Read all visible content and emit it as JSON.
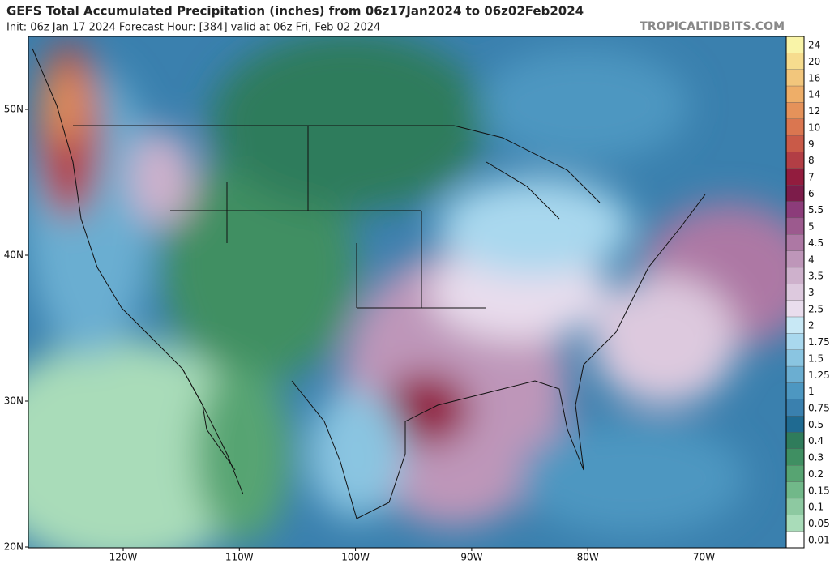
{
  "header": {
    "title": "GEFS Total Accumulated Precipitation (inches) from 06z17Jan2024 to 06z02Feb2024",
    "subtitle": "Init: 06z Jan 17 2024   Forecast Hour: [384]   valid at 06z Fri, Feb 02 2024",
    "credit": "TROPICALTIDBITS.COM"
  },
  "map": {
    "lat_labels": [
      "50N",
      "40N",
      "30N",
      "20N"
    ],
    "lon_labels": [
      "120W",
      "110W",
      "100W",
      "90W",
      "80W",
      "70W"
    ]
  },
  "colorbar": {
    "levels": [
      24,
      20,
      16,
      14,
      12,
      10,
      9,
      8,
      7,
      6,
      5.5,
      5,
      4.5,
      4,
      3.5,
      3,
      2.5,
      2,
      1.75,
      1.5,
      1.25,
      1,
      0.75,
      0.5,
      0.4,
      0.3,
      0.2,
      0.15,
      0.1,
      0.05,
      0.01
    ],
    "colors": [
      "#f9f4a8",
      "#f6dc8e",
      "#f2c67c",
      "#eeae68",
      "#e5925a",
      "#da7650",
      "#c95a48",
      "#b23e45",
      "#921c3e",
      "#7c1c4a",
      "#8c3c7a",
      "#9c5a8e",
      "#ad78a4",
      "#be96b9",
      "#ceb1cc",
      "#ddc9de",
      "#e9dded",
      "#c8e8f5",
      "#a9d8ee",
      "#8ac5e1",
      "#6baed1",
      "#4d97c1",
      "#3a80ae",
      "#1f6a91",
      "#2f7c5b",
      "#3f8f62",
      "#57a472",
      "#71b889",
      "#8dc9a1",
      "#a9dcb9",
      "#ffffff"
    ]
  }
}
